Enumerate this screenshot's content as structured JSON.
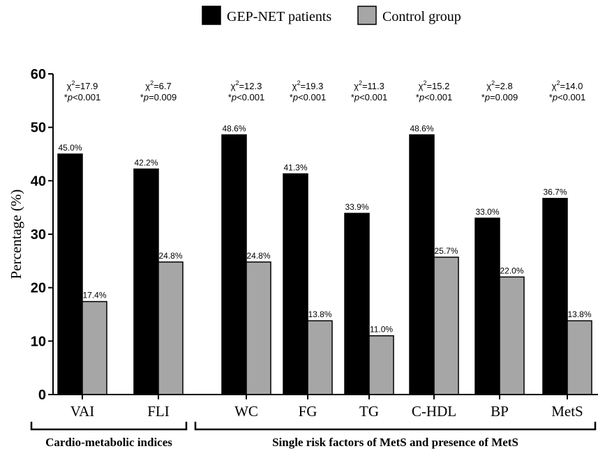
{
  "chart_data": {
    "type": "bar",
    "ylabel": "Percentage (%)",
    "ylim": [
      0,
      60
    ],
    "yticks": [
      0,
      10,
      20,
      30,
      40,
      50,
      60
    ],
    "grid": false,
    "legend_position": "top-center",
    "categories": [
      "VAI",
      "FLI",
      "WC",
      "FG",
      "TG",
      "C-HDL",
      "BP",
      "MetS"
    ],
    "series": [
      {
        "name": "GEP-NET patients",
        "color": "#000000",
        "values": [
          45.0,
          42.2,
          48.6,
          41.3,
          33.9,
          48.6,
          33.0,
          36.7
        ],
        "labels": [
          "45.0%",
          "42.2%",
          "48.6%",
          "41.3%",
          "33.9%",
          "48.6%",
          "33.0%",
          "36.7%"
        ]
      },
      {
        "name": "Control group",
        "color": "#a6a6a6",
        "values": [
          17.4,
          24.8,
          24.8,
          13.8,
          11.0,
          25.7,
          22.0,
          13.8
        ],
        "labels": [
          "17.4%",
          "24.8%",
          "24.8%",
          "13.8%",
          "11.0%",
          "25.7%",
          "22.0%",
          "13.8%"
        ]
      }
    ],
    "annotations": [
      {
        "chi_value": "=17.9",
        "p_text": "<0.001"
      },
      {
        "chi_value": "=6.7",
        "p_text": "=0.009"
      },
      {
        "chi_value": "=12.3",
        "p_text": "<0.001"
      },
      {
        "chi_value": "=19.3",
        "p_text": "<0.001"
      },
      {
        "chi_value": "=11.3",
        "p_text": "<0.001"
      },
      {
        "chi_value": "=15.2",
        "p_text": "<0.001"
      },
      {
        "chi_value": "=2.8",
        "p_text": "=0.009"
      },
      {
        "chi_value": "=14.0",
        "p_text": "<0.001"
      }
    ],
    "chi_symbol": "χ",
    "chi_sup": "2",
    "p_prefix": "*",
    "p_symbol": "p",
    "groups": [
      {
        "label": "Cardio-metabolic indices",
        "from": 0,
        "to": 1
      },
      {
        "label": "Single risk factors of MetS and presence of MetS",
        "from": 2,
        "to": 7
      }
    ]
  }
}
